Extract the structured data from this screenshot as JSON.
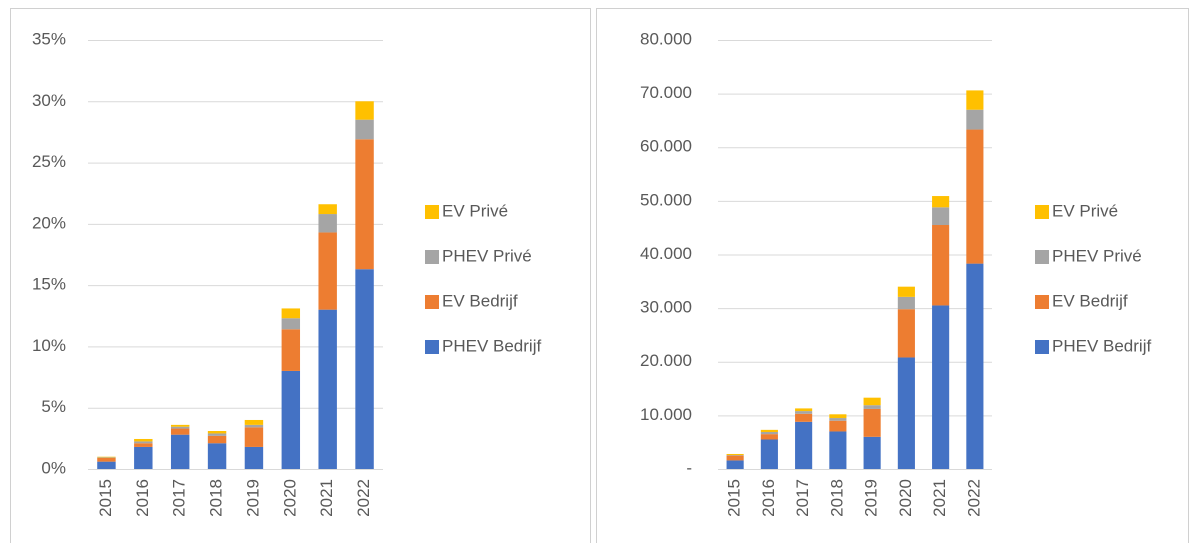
{
  "chart_data": [
    {
      "type": "bar",
      "stacked": true,
      "grid": true,
      "legend": "right",
      "categories": [
        "2015",
        "2016",
        "2017",
        "2018",
        "2019",
        "2020",
        "2021",
        "2022"
      ],
      "series": [
        {
          "name": "PHEV Bedrijf",
          "color": "#4472c4",
          "values": [
            0.6,
            1.8,
            2.8,
            2.1,
            1.8,
            8.0,
            13.0,
            16.3
          ]
        },
        {
          "name": "EV Bedrijf",
          "color": "#ed7d31",
          "values": [
            0.3,
            0.3,
            0.5,
            0.6,
            1.6,
            3.4,
            6.3,
            10.6
          ]
        },
        {
          "name": "PHEV Privé",
          "color": "#a5a5a5",
          "values": [
            0.05,
            0.15,
            0.15,
            0.2,
            0.2,
            0.9,
            1.5,
            1.6
          ]
        },
        {
          "name": "EV Privé",
          "color": "#ffc000",
          "values": [
            0.05,
            0.2,
            0.15,
            0.2,
            0.4,
            0.8,
            0.8,
            1.5
          ]
        }
      ],
      "ylim": [
        0,
        35
      ],
      "yticks": [
        {
          "value": 0,
          "label": "0%"
        },
        {
          "value": 5,
          "label": "5%"
        },
        {
          "value": 10,
          "label": "10%"
        },
        {
          "value": 15,
          "label": "15%"
        },
        {
          "value": 20,
          "label": "20%"
        },
        {
          "value": 25,
          "label": "25%"
        },
        {
          "value": 30,
          "label": "30%"
        },
        {
          "value": 35,
          "label": "35%"
        }
      ]
    },
    {
      "type": "bar",
      "stacked": true,
      "grid": true,
      "legend": "right",
      "categories": [
        "2015",
        "2016",
        "2017",
        "2018",
        "2019",
        "2020",
        "2021",
        "2022"
      ],
      "series": [
        {
          "name": "PHEV Bedrijf",
          "color": "#4472c4",
          "values": [
            1600,
            5500,
            8800,
            7000,
            6000,
            20800,
            30500,
            38300
          ]
        },
        {
          "name": "EV Bedrijf",
          "color": "#ed7d31",
          "values": [
            900,
            1000,
            1500,
            2000,
            5200,
            9000,
            15000,
            25000
          ]
        },
        {
          "name": "PHEV Privé",
          "color": "#a5a5a5",
          "values": [
            100,
            400,
            500,
            500,
            700,
            2300,
            3300,
            3700
          ]
        },
        {
          "name": "EV Privé",
          "color": "#ffc000",
          "values": [
            200,
            400,
            500,
            700,
            1400,
            1900,
            2100,
            3600
          ]
        }
      ],
      "ylim": [
        0,
        80000
      ],
      "yticks": [
        {
          "value": 0,
          "label": "-"
        },
        {
          "value": 10000,
          "label": "10.000"
        },
        {
          "value": 20000,
          "label": "20.000"
        },
        {
          "value": 30000,
          "label": "30.000"
        },
        {
          "value": 40000,
          "label": "40.000"
        },
        {
          "value": 50000,
          "label": "50.000"
        },
        {
          "value": 60000,
          "label": "60.000"
        },
        {
          "value": 70000,
          "label": "70.000"
        },
        {
          "value": 80000,
          "label": "80.000"
        }
      ]
    }
  ]
}
